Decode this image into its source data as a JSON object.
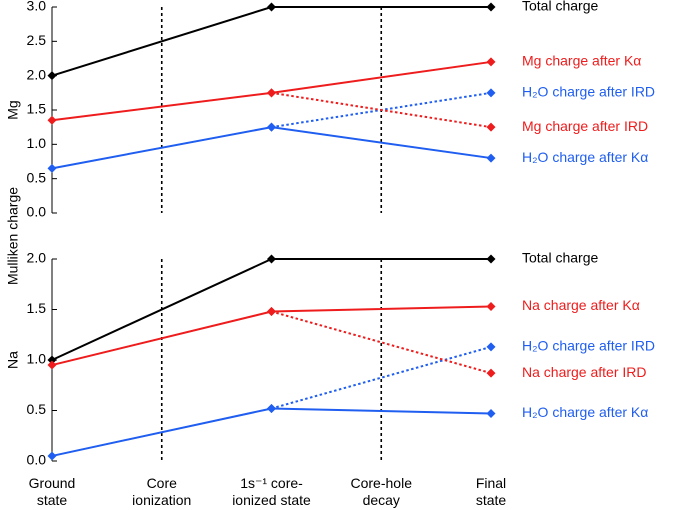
{
  "shared_ylabel": "Mulliken charge",
  "chart_data": [
    {
      "type": "line",
      "panel_label": "Mg",
      "x": [
        0,
        2,
        4
      ],
      "xlim": [
        0,
        4
      ],
      "vlines": [
        1,
        3
      ],
      "ylim": [
        0,
        3
      ],
      "yticks": [
        {
          "value": 0,
          "label": "0.0"
        },
        0.5,
        {
          "value": 1,
          "label": "1.0"
        },
        1.5,
        {
          "value": 2,
          "label": "2.0"
        },
        2.5,
        {
          "value": 3,
          "label": "3.0"
        }
      ],
      "series": [
        {
          "name": "Total charge",
          "color": "#000000",
          "style": "solid",
          "values": [
            2.0,
            3.0,
            3.0
          ]
        },
        {
          "name": "Mg charge after Kα",
          "color": "#ee1c1c",
          "style": "solid",
          "values": [
            1.35,
            1.75,
            2.2
          ]
        },
        {
          "name": "H₂O charge after IRD",
          "color": "#1f5ef0",
          "style": "dotted",
          "values": [
            null,
            1.25,
            1.75
          ]
        },
        {
          "name": "Mg charge after IRD",
          "color": "#ee1c1c",
          "style": "dotted",
          "values": [
            null,
            1.75,
            1.25
          ]
        },
        {
          "name": "H₂O charge after Kα",
          "color": "#1f5ef0",
          "style": "solid",
          "values": [
            0.65,
            1.25,
            0.8
          ]
        }
      ]
    },
    {
      "type": "line",
      "panel_label": "Na",
      "x": [
        0,
        2,
        4
      ],
      "xlim": [
        0,
        4
      ],
      "vlines": [
        1,
        3
      ],
      "xticks": [
        {
          "value": 0,
          "label": "Ground\nstate"
        },
        {
          "value": 1,
          "label": "Core\nionization"
        },
        {
          "value": 2,
          "label": "1s⁻¹ core-\nionized state"
        },
        {
          "value": 3,
          "label": "Core-hole\ndecay"
        },
        {
          "value": 4,
          "label": "Final\nstate"
        }
      ],
      "ylim": [
        0,
        2
      ],
      "yticks": [
        {
          "value": 0,
          "label": "0.0"
        },
        0.5,
        {
          "value": 1,
          "label": "1.0"
        },
        1.5,
        {
          "value": 2,
          "label": "2.0"
        }
      ],
      "series": [
        {
          "name": "Total charge",
          "color": "#000000",
          "style": "solid",
          "values": [
            1.0,
            2.0,
            2.0
          ]
        },
        {
          "name": "Na charge after Kα",
          "color": "#ee1c1c",
          "style": "solid",
          "values": [
            0.95,
            1.48,
            1.53
          ]
        },
        {
          "name": "H₂O charge after IRD",
          "color": "#1f5ef0",
          "style": "dotted",
          "values": [
            null,
            0.52,
            1.13
          ]
        },
        {
          "name": "Na charge after IRD",
          "color": "#ee1c1c",
          "style": "dotted",
          "values": [
            null,
            1.48,
            0.87
          ]
        },
        {
          "name": "H₂O charge after Kα",
          "color": "#1f5ef0",
          "style": "solid",
          "values": [
            0.05,
            0.52,
            0.47
          ]
        }
      ]
    }
  ]
}
